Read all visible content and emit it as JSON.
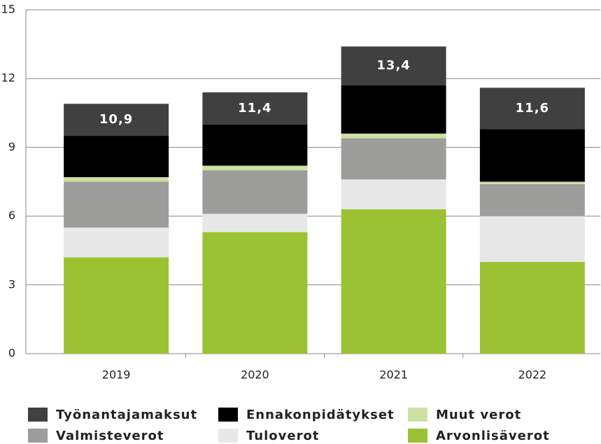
{
  "chart_data": {
    "type": "stacked_bar",
    "categories": [
      "2019",
      "2020",
      "2021",
      "2022"
    ],
    "series": [
      {
        "name": "Arvonlisäverot",
        "color": "#9bc232",
        "values": [
          4.2,
          5.3,
          6.3,
          4.0
        ]
      },
      {
        "name": "Tuloverot",
        "color": "#e8e8e8",
        "values": [
          1.3,
          0.8,
          1.3,
          2.0
        ]
      },
      {
        "name": "Valmisteverot",
        "color": "#9d9d9c",
        "values": [
          2.0,
          1.9,
          1.8,
          1.4
        ]
      },
      {
        "name": "Muut verot",
        "color": "#cfe0a3",
        "values": [
          0.2,
          0.2,
          0.2,
          0.1
        ]
      },
      {
        "name": "Ennakonpidätykset",
        "color": "#000000",
        "values": [
          1.8,
          1.8,
          2.1,
          2.3
        ]
      },
      {
        "name": "Työnantajamaksut",
        "color": "#404040",
        "values": [
          1.4,
          1.4,
          1.7,
          1.8
        ]
      }
    ],
    "totals": [
      10.9,
      11.4,
      13.4,
      11.6
    ],
    "total_labels": [
      "10,9",
      "11,4",
      "13,4",
      "11,6"
    ],
    "ylim": [
      0,
      15
    ],
    "yticks": [
      0,
      3,
      6,
      9,
      12,
      15
    ],
    "grid": true
  }
}
